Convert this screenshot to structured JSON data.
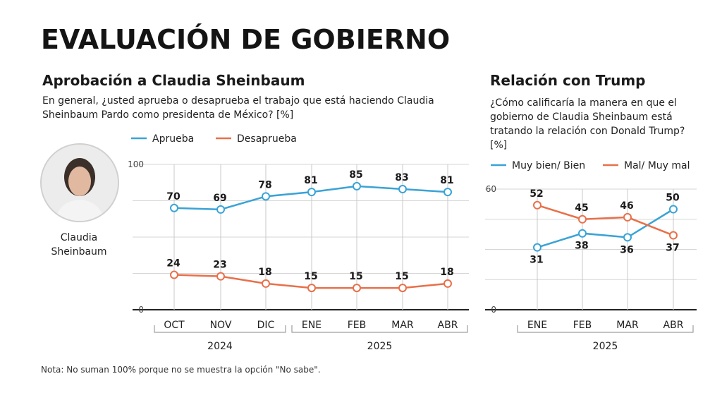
{
  "main_title": "EVALUACIÓN DE GOBIERNO",
  "left": {
    "subtitle": "Aprobación a Claudia Sheinbaum",
    "question": "En general, ¿usted aprueba o desaprueba el trabajo que está haciendo Claudia Sheinbaum Pardo como presidenta de México? [%]",
    "person_name": "Claudia Sheinbaum"
  },
  "right": {
    "subtitle": "Relación con Trump",
    "question": "¿Cómo calificaría la manera en que el gobierno de Claudia Sheinbaum está tratando la relación con Donald Trump? [%]"
  },
  "note": "Nota: No suman 100% porque no se muestra la opción \"No sabe\".",
  "colors": {
    "blue": "#3aa3d6",
    "orange": "#e8704a",
    "grid": "#d6d6d6",
    "axis": "#222222"
  },
  "icons": {
    "photo": "portrait-photo"
  },
  "chart_data": [
    {
      "type": "line",
      "categories": [
        "OCT",
        "NOV",
        "DIC",
        "ENE",
        "FEB",
        "MAR",
        "ABR"
      ],
      "groups": [
        {
          "label": "2024",
          "from": 0,
          "to": 2
        },
        {
          "label": "2025",
          "from": 3,
          "to": 6
        }
      ],
      "series": [
        {
          "name": "Aprueba",
          "color": "#3aa3d6",
          "values": [
            70,
            69,
            78,
            81,
            85,
            83,
            81
          ]
        },
        {
          "name": "Desaprueba",
          "color": "#e8704a",
          "values": [
            24,
            23,
            18,
            15,
            15,
            15,
            18
          ]
        }
      ],
      "ylim": [
        0,
        100
      ],
      "yticks": [
        "0",
        "100"
      ],
      "grid": true,
      "legend": "top"
    },
    {
      "type": "line",
      "categories": [
        "ENE",
        "FEB",
        "MAR",
        "ABR"
      ],
      "groups": [
        {
          "label": "2025",
          "from": 0,
          "to": 3
        }
      ],
      "series": [
        {
          "name": "Muy bien/ Bien",
          "color": "#3aa3d6",
          "values": [
            31,
            38,
            36,
            50
          ]
        },
        {
          "name": "Mal/ Muy mal",
          "color": "#e8704a",
          "values": [
            52,
            45,
            46,
            37
          ]
        }
      ],
      "ylim": [
        0,
        60
      ],
      "yticks": [
        "0",
        "60"
      ],
      "grid": true,
      "legend": "top"
    }
  ]
}
